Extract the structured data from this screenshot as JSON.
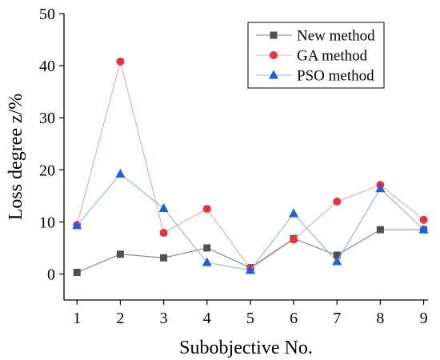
{
  "chart_data": {
    "type": "line",
    "x": [
      1,
      2,
      3,
      4,
      5,
      6,
      7,
      8,
      9
    ],
    "xlabel": "Subobjective No.",
    "ylabel": "Loss degree z/%",
    "xlim": [
      0.7,
      9.1
    ],
    "ylim": [
      -5,
      50
    ],
    "xticks": [
      1,
      2,
      3,
      4,
      5,
      6,
      7,
      8,
      9
    ],
    "yticks": [
      0,
      10,
      20,
      30,
      40,
      50
    ],
    "grid": false,
    "legend_position": "top-right",
    "series": [
      {
        "name": "New method",
        "color": "#808080",
        "marker_color": "#505050",
        "marker": "square",
        "values": [
          0.3,
          3.8,
          3.1,
          5.0,
          1.2,
          6.8,
          3.6,
          8.5,
          8.5
        ]
      },
      {
        "name": "GA method",
        "color": "#f4a6a6",
        "marker_color": "#e8323c",
        "marker": "circle",
        "values": [
          9.4,
          40.8,
          7.9,
          12.5,
          1.0,
          6.6,
          13.9,
          17.1,
          10.4
        ]
      },
      {
        "name": "PSO method",
        "color": "#8fb0e8",
        "marker_color": "#1f5fdc",
        "marker": "triangle",
        "values": [
          9.3,
          19.2,
          12.6,
          2.2,
          0.7,
          11.6,
          2.4,
          16.4,
          8.5
        ]
      }
    ]
  }
}
